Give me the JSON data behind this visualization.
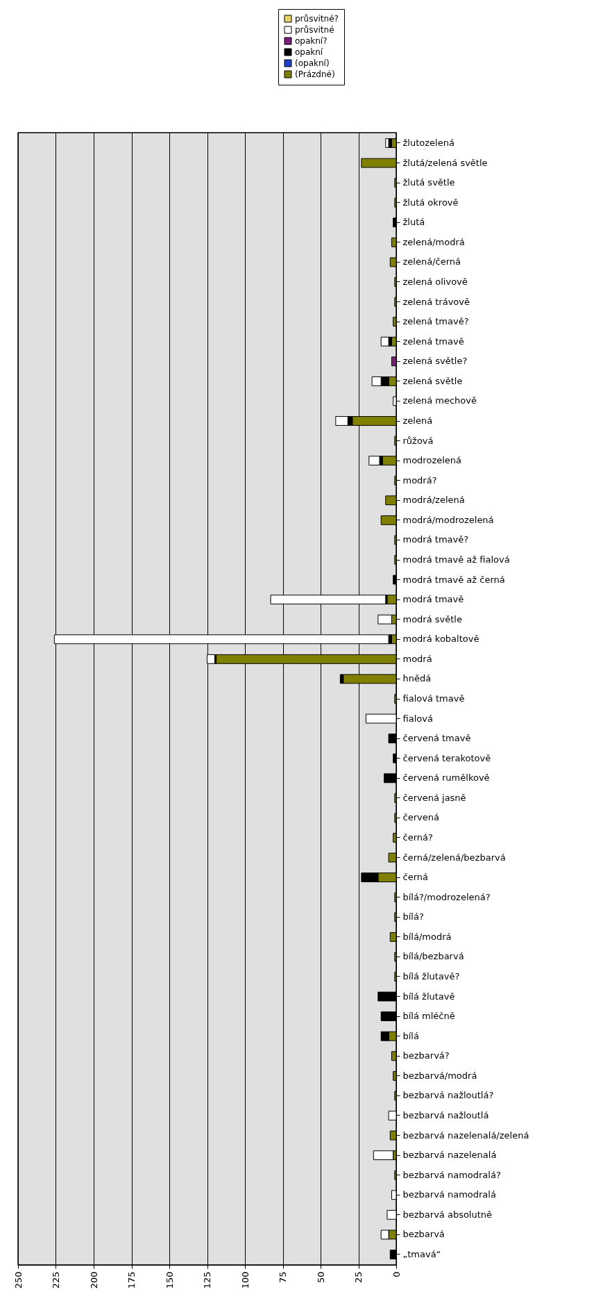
{
  "chart_data": {
    "type": "bar",
    "orientation": "horizontal",
    "stacked": true,
    "categories": [
      "žlutozelená",
      "žlutá/zelená světle",
      "žlutá světle",
      "žlutá okrově",
      "žlutá",
      "zelená/modrá",
      "zelená/černá",
      "zelená olivově",
      "zelená trávově",
      "zelená tmavě?",
      "zelená tmavě",
      "zelená světle?",
      "zelená světle",
      "zelená mechově",
      "zelená",
      "růžová",
      "modrozelená",
      "modrá?",
      "modrá/zelená",
      "modrá/modrozelená",
      "modrá tmavě?",
      "modrá tmavě až fialová",
      "modrá tmavě až černá",
      "modrá tmavě",
      "modrá světle",
      "modrá kobaltově",
      "modrá",
      "hnědá",
      "fialová tmavě",
      "fialová",
      "červená tmavě",
      "červená terakotově",
      "červená rumělkově",
      "červená jasně",
      "červená",
      "černá?",
      "černá/zelená/bezbarvá",
      "černá",
      "bílá?/modrozelená?",
      "bílá?",
      "bílá/modrá",
      "bílá/bezbarvá",
      "bílá žlutavě?",
      "bílá žlutavě",
      "bílá mléčně",
      "bílá",
      "bezbarvá?",
      "bezbarvá/modrá",
      "bezbarvá nažloutlá?",
      "bezbarvá nažloutlá",
      "bezbarvá nazelenalá/zelená",
      "bezbarvá nazelenalá",
      "bezbarvá namodralá?",
      "bezbarvá namodralá",
      "bezbarvá absolutně",
      "bezbarvá",
      "„tmavá“"
    ],
    "series": [
      {
        "name": "(Prázdné)",
        "color": "#808000",
        "values": [
          3,
          23,
          1,
          1,
          null,
          3,
          4,
          1,
          1,
          2,
          3,
          null,
          5,
          null,
          29,
          1,
          9,
          1,
          7,
          10,
          1,
          1,
          null,
          6,
          3,
          3,
          119,
          35,
          1,
          null,
          null,
          null,
          null,
          1,
          1,
          2,
          5,
          12,
          1,
          1,
          4,
          1,
          1,
          null,
          null,
          5,
          3,
          2,
          1,
          null,
          4,
          2,
          1,
          null,
          null,
          5,
          null
        ]
      },
      {
        "name": "(opakní)",
        "color": "#1f3fd0",
        "values": [
          null,
          null,
          null,
          null,
          null,
          null,
          null,
          null,
          null,
          null,
          null,
          null,
          null,
          null,
          null,
          null,
          null,
          null,
          null,
          null,
          null,
          null,
          null,
          null,
          null,
          null,
          null,
          null,
          null,
          null,
          null,
          null,
          null,
          null,
          null,
          null,
          null,
          null,
          null,
          null,
          null,
          null,
          null,
          null,
          null,
          null,
          null,
          null,
          null,
          null,
          null,
          null,
          null,
          null,
          null,
          null,
          null
        ]
      },
      {
        "name": "opakní",
        "color": "#000000",
        "values": [
          2,
          null,
          null,
          null,
          2,
          null,
          null,
          null,
          null,
          null,
          2,
          null,
          5,
          null,
          3,
          null,
          2,
          null,
          null,
          null,
          null,
          null,
          2,
          1,
          null,
          2,
          1,
          2,
          null,
          null,
          5,
          2,
          8,
          null,
          null,
          null,
          null,
          11,
          null,
          null,
          null,
          null,
          null,
          12,
          10,
          5,
          null,
          null,
          null,
          null,
          null,
          null,
          null,
          null,
          null,
          null,
          4
        ]
      },
      {
        "name": "opakní?",
        "color": "#7a1f7a",
        "values": [
          null,
          null,
          null,
          null,
          null,
          null,
          null,
          null,
          null,
          null,
          null,
          3,
          null,
          null,
          null,
          null,
          null,
          null,
          null,
          null,
          null,
          null,
          null,
          null,
          null,
          null,
          null,
          null,
          null,
          null,
          null,
          null,
          null,
          null,
          null,
          null,
          null,
          null,
          null,
          null,
          null,
          null,
          null,
          null,
          null,
          null,
          null,
          null,
          null,
          null,
          null,
          null,
          null,
          null,
          null,
          null,
          null
        ]
      },
      {
        "name": "průsvitné",
        "color": "#ffffff",
        "values": [
          2,
          null,
          null,
          null,
          null,
          null,
          null,
          null,
          null,
          null,
          5,
          null,
          6,
          2,
          8,
          null,
          7,
          null,
          null,
          null,
          null,
          null,
          null,
          76,
          9,
          221,
          5,
          null,
          null,
          20,
          null,
          null,
          null,
          null,
          null,
          null,
          null,
          null,
          null,
          null,
          null,
          null,
          null,
          null,
          null,
          null,
          null,
          null,
          null,
          5,
          null,
          13,
          null,
          3,
          6,
          5,
          null
        ]
      },
      {
        "name": "průsvitné?",
        "color": "#e6d36a",
        "values": [
          null,
          null,
          null,
          null,
          null,
          null,
          null,
          null,
          null,
          null,
          null,
          null,
          null,
          null,
          null,
          null,
          null,
          null,
          null,
          null,
          null,
          null,
          null,
          null,
          null,
          null,
          null,
          null,
          null,
          null,
          null,
          null,
          null,
          null,
          null,
          null,
          null,
          null,
          null,
          null,
          null,
          null,
          null,
          null,
          null,
          null,
          null,
          null,
          null,
          null,
          null,
          null,
          null,
          null,
          null,
          null,
          null
        ]
      }
    ],
    "xlim": [
      250,
      0
    ],
    "xticks": [
      250,
      225,
      200,
      175,
      150,
      125,
      100,
      75,
      50,
      25,
      0
    ],
    "grid": true,
    "legend": "top right"
  }
}
